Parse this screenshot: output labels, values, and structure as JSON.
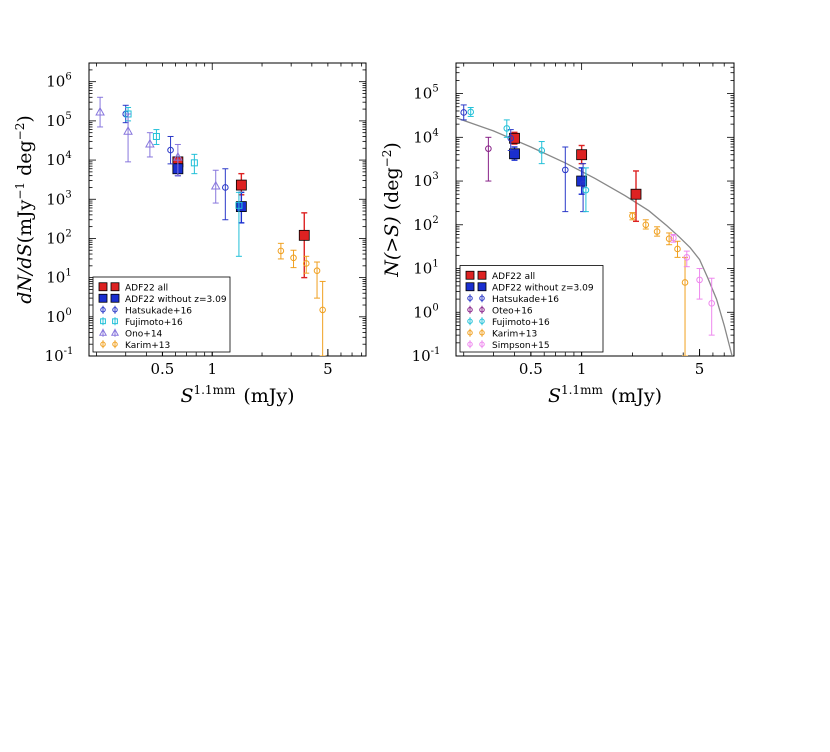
{
  "chart_data": [
    {
      "type": "scatter",
      "xscale": "log",
      "yscale": "log",
      "xlim": [
        0.18,
        8.5
      ],
      "ylim": [
        0.1,
        3000000
      ],
      "xticks": [
        {
          "value": 0.5,
          "label": "0.5"
        },
        {
          "value": 1,
          "label": "1"
        },
        {
          "value": 5,
          "label": "5"
        }
      ],
      "yticks": [
        {
          "value": 0.1,
          "base": "10",
          "exp": "-1"
        },
        {
          "value": 1,
          "base": "10",
          "exp": "0"
        },
        {
          "value": 10,
          "base": "10",
          "exp": "1"
        },
        {
          "value": 100,
          "base": "10",
          "exp": "2"
        },
        {
          "value": 1000,
          "base": "10",
          "exp": "3"
        },
        {
          "value": 10000,
          "base": "10",
          "exp": "4"
        },
        {
          "value": 100000,
          "base": "10",
          "exp": "5"
        },
        {
          "value": 1000000,
          "base": "10",
          "exp": "6"
        }
      ],
      "xlabel": {
        "base": "S",
        "sup": "1.1mm",
        "unit": "(mJy)"
      },
      "ylabel": {
        "main": "dN/dS",
        "unit": "(mJy",
        "sup1": "−1",
        "mid": " deg",
        "sup2": "−2",
        "end": ")"
      },
      "legend_position": "lower-left",
      "series": [
        {
          "name": "ADF22 all",
          "color": "#dd2222",
          "marker": "square-filled",
          "points": [
            [
              0.62,
              9000,
              6500,
              11000
            ],
            [
              1.5,
              2300,
              1300,
              4500
            ],
            [
              3.6,
              120,
              10,
              450
            ]
          ]
        },
        {
          "name": "ADF22 without z=3.09",
          "color": "#1a2fd0",
          "marker": "square-filled",
          "points": [
            [
              0.62,
              6000,
              4000,
              8000
            ],
            [
              1.5,
              650,
              250,
              1500
            ]
          ]
        },
        {
          "name": "Hatsukade+16",
          "color": "#2a38c8",
          "marker": "circle-open",
          "points": [
            [
              0.3,
              150000,
              90000,
              250000
            ],
            [
              0.56,
              18000,
              8000,
              40000
            ],
            [
              1.2,
              2000,
              300,
              6000
            ]
          ]
        },
        {
          "name": "Fujimoto+16",
          "color": "#22c0d8",
          "marker": "square-open",
          "points": [
            [
              0.31,
              150000,
              100000,
              220000
            ],
            [
              0.46,
              40000,
              25000,
              60000
            ],
            [
              0.78,
              8500,
              4500,
              14000
            ],
            [
              1.45,
              700,
              35,
              1500
            ]
          ]
        },
        {
          "name": "Ono+14",
          "color": "#8877dd",
          "marker": "triangle-open",
          "points": [
            [
              0.21,
              170000,
              70000,
              400000
            ],
            [
              0.31,
              55000,
              9000,
              150000
            ],
            [
              0.42,
              26000,
              12000,
              50000
            ],
            [
              0.62,
              12000,
              4000,
              25000
            ],
            [
              1.05,
              2200,
              800,
              5500
            ]
          ]
        },
        {
          "name": "Karim+13",
          "color": "#f0a020",
          "marker": "circle-open",
          "points": [
            [
              2.6,
              48,
              30,
              75
            ],
            [
              3.1,
              32,
              18,
              50
            ],
            [
              3.7,
              23,
              13,
              35
            ],
            [
              4.3,
              15,
              3,
              25
            ],
            [
              4.65,
              1.5,
              0.1,
              8
            ]
          ]
        }
      ],
      "legend_entries": [
        {
          "label": "ADF22 all",
          "series": 0
        },
        {
          "label": "ADF22 without z=3.09",
          "series": 1
        },
        {
          "label": "Hatsukade+16",
          "series": 2
        },
        {
          "label": "Fujimoto+16",
          "series": 3
        },
        {
          "label": "Ono+14",
          "series": 4
        },
        {
          "label": "Karim+13",
          "series": 5
        }
      ]
    },
    {
      "type": "scatter",
      "xscale": "log",
      "yscale": "log",
      "xlim": [
        0.18,
        8.0
      ],
      "ylim": [
        0.1,
        500000
      ],
      "xticks": [
        {
          "value": 0.5,
          "label": "0.5"
        },
        {
          "value": 1,
          "label": "1"
        },
        {
          "value": 5,
          "label": "5"
        }
      ],
      "yticks": [
        {
          "value": 0.1,
          "base": "10",
          "exp": "-1"
        },
        {
          "value": 1,
          "base": "10",
          "exp": "0"
        },
        {
          "value": 10,
          "base": "10",
          "exp": "1"
        },
        {
          "value": 100,
          "base": "10",
          "exp": "2"
        },
        {
          "value": 1000,
          "base": "10",
          "exp": "3"
        },
        {
          "value": 10000,
          "base": "10",
          "exp": "4"
        },
        {
          "value": 100000,
          "base": "10",
          "exp": "5"
        }
      ],
      "xlabel": {
        "base": "S",
        "sup": "1.1mm",
        "unit": "(mJy)"
      },
      "ylabel": {
        "main": "N(>S)",
        "unit": " (deg",
        "sup": "−2",
        "end": ")"
      },
      "legend_position": "lower-left",
      "model_curve": {
        "color": "#888888",
        "x": [
          0.18,
          0.3,
          0.5,
          0.8,
          1.2,
          1.8,
          2.5,
          3.2,
          3.8,
          4.4,
          5.0,
          5.6,
          6.3,
          7.0,
          7.8
        ],
        "y": [
          28000,
          14000,
          6000,
          2600,
          1150,
          470,
          210,
          95,
          52,
          30,
          16,
          6,
          2,
          0.5,
          0.1
        ]
      },
      "series": [
        {
          "name": "ADF22 all",
          "color": "#dd2222",
          "marker": "square-filled",
          "points": [
            [
              0.4,
              9500,
              7000,
              13000
            ],
            [
              1.0,
              4000,
              2500,
              6500
            ],
            [
              2.1,
              500,
              120,
              1700
            ]
          ]
        },
        {
          "name": "ADF22 without z=3.09",
          "color": "#1a2fd0",
          "marker": "square-filled",
          "points": [
            [
              0.4,
              4200,
              3000,
              6000
            ],
            [
              1.0,
              1000,
              500,
              2000
            ]
          ]
        },
        {
          "name": "Hatsukade+16",
          "color": "#2a38c8",
          "marker": "circle-open",
          "points": [
            [
              0.2,
              37000,
              25000,
              55000
            ],
            [
              0.38,
              9500,
              5000,
              15000
            ],
            [
              0.8,
              1800,
              200,
              6000
            ],
            [
              1.02,
              850,
              200,
              2500
            ]
          ]
        },
        {
          "name": "Oteo+16",
          "color": "#882288",
          "marker": "circle-open",
          "points": [
            [
              0.28,
              5500,
              1000,
              10000
            ]
          ]
        },
        {
          "name": "Fujimoto+16",
          "color": "#22c0d8",
          "marker": "circle-open",
          "points": [
            [
              0.22,
              38000,
              30000,
              48000
            ],
            [
              0.36,
              16000,
              10000,
              25000
            ],
            [
              0.58,
              5000,
              2500,
              8000
            ],
            [
              1.06,
              620,
              200,
              2000
            ]
          ]
        },
        {
          "name": "Karim+13",
          "color": "#f0a020",
          "marker": "circle-open",
          "points": [
            [
              2.0,
              160,
              130,
              190
            ],
            [
              2.4,
              100,
              80,
              130
            ],
            [
              2.8,
              70,
              55,
              90
            ],
            [
              3.3,
              48,
              35,
              65
            ],
            [
              3.7,
              28,
              18,
              42
            ],
            [
              4.1,
              4.8,
              0.1,
              18
            ]
          ]
        },
        {
          "name": "Simpson+15",
          "color": "#ee88ee",
          "marker": "circle-open",
          "points": [
            [
              3.5,
              50,
              40,
              60
            ],
            [
              4.2,
              18,
              11,
              25
            ],
            [
              5.0,
              5.5,
              2,
              10
            ],
            [
              5.9,
              1.6,
              0.3,
              6
            ]
          ]
        }
      ],
      "legend_entries": [
        {
          "label": "ADF22 all",
          "series": 0
        },
        {
          "label": "ADF22 without z=3.09",
          "series": 1
        },
        {
          "label": "Hatsukade+16",
          "series": 2
        },
        {
          "label": "Oteo+16",
          "series": 3
        },
        {
          "label": "Fujimoto+16",
          "series": 4
        },
        {
          "label": "Karim+13",
          "series": 5
        },
        {
          "label": "Simpson+15",
          "series": 6
        }
      ]
    }
  ]
}
